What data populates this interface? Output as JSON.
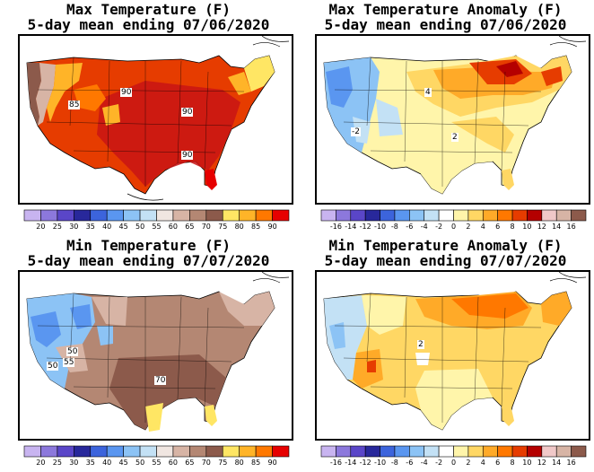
{
  "panels": [
    {
      "id": "max-temp",
      "title_line1": "Max Temperature (F)",
      "title_line2": "5-day mean ending 07/06/2020",
      "scale": "temp",
      "labels": [
        "85",
        "90",
        "90",
        "90"
      ]
    },
    {
      "id": "max-anom",
      "title_line1": "Max Temperature Anomaly (F)",
      "title_line2": "5-day mean ending 07/06/2020",
      "scale": "anom",
      "labels": [
        "4",
        "2",
        "-2"
      ]
    },
    {
      "id": "min-temp",
      "title_line1": "Min Temperature (F)",
      "title_line2": "5-day mean ending 07/07/2020",
      "scale": "temp",
      "labels": [
        "50",
        "55",
        "50",
        "70"
      ]
    },
    {
      "id": "min-anom",
      "title_line1": "Min Temperature Anomaly (F)",
      "title_line2": "5-day mean ending 07/07/2020",
      "scale": "anom",
      "labels": [
        "2"
      ]
    }
  ],
  "scales": {
    "temp": {
      "ticks": [
        "20",
        "25",
        "30",
        "35",
        "40",
        "45",
        "50",
        "55",
        "60",
        "65",
        "70",
        "75",
        "80",
        "85",
        "90"
      ],
      "colors": [
        "#c8b4f0",
        "#8c78dc",
        "#5a46c8",
        "#28289b",
        "#3c64dc",
        "#5a96f0",
        "#8cc3f5",
        "#c3e1f5",
        "#f0e6e1",
        "#d7b4a5",
        "#b48773",
        "#8c5a4b",
        "#ffe664",
        "#ffb428",
        "#ff7800",
        "#e60000"
      ]
    },
    "anom": {
      "ticks": [
        "-16",
        "-14",
        "-12",
        "-10",
        "-8",
        "-6",
        "-4",
        "-2",
        "0",
        "2",
        "4",
        "6",
        "8",
        "10",
        "12",
        "14",
        "16"
      ],
      "colors": [
        "#c8b4f0",
        "#8c78dc",
        "#5a46c8",
        "#28289b",
        "#3c64dc",
        "#5a96f0",
        "#8cc3f5",
        "#c3e1f5",
        "#ffffff",
        "#fff5aa",
        "#ffd764",
        "#ffaa28",
        "#ff7800",
        "#e63c00",
        "#b40000",
        "#f0c8c8",
        "#d7b4a5",
        "#8c5a4b"
      ]
    }
  },
  "colors": {
    "background": "#ffffff",
    "outline": "#000000"
  }
}
